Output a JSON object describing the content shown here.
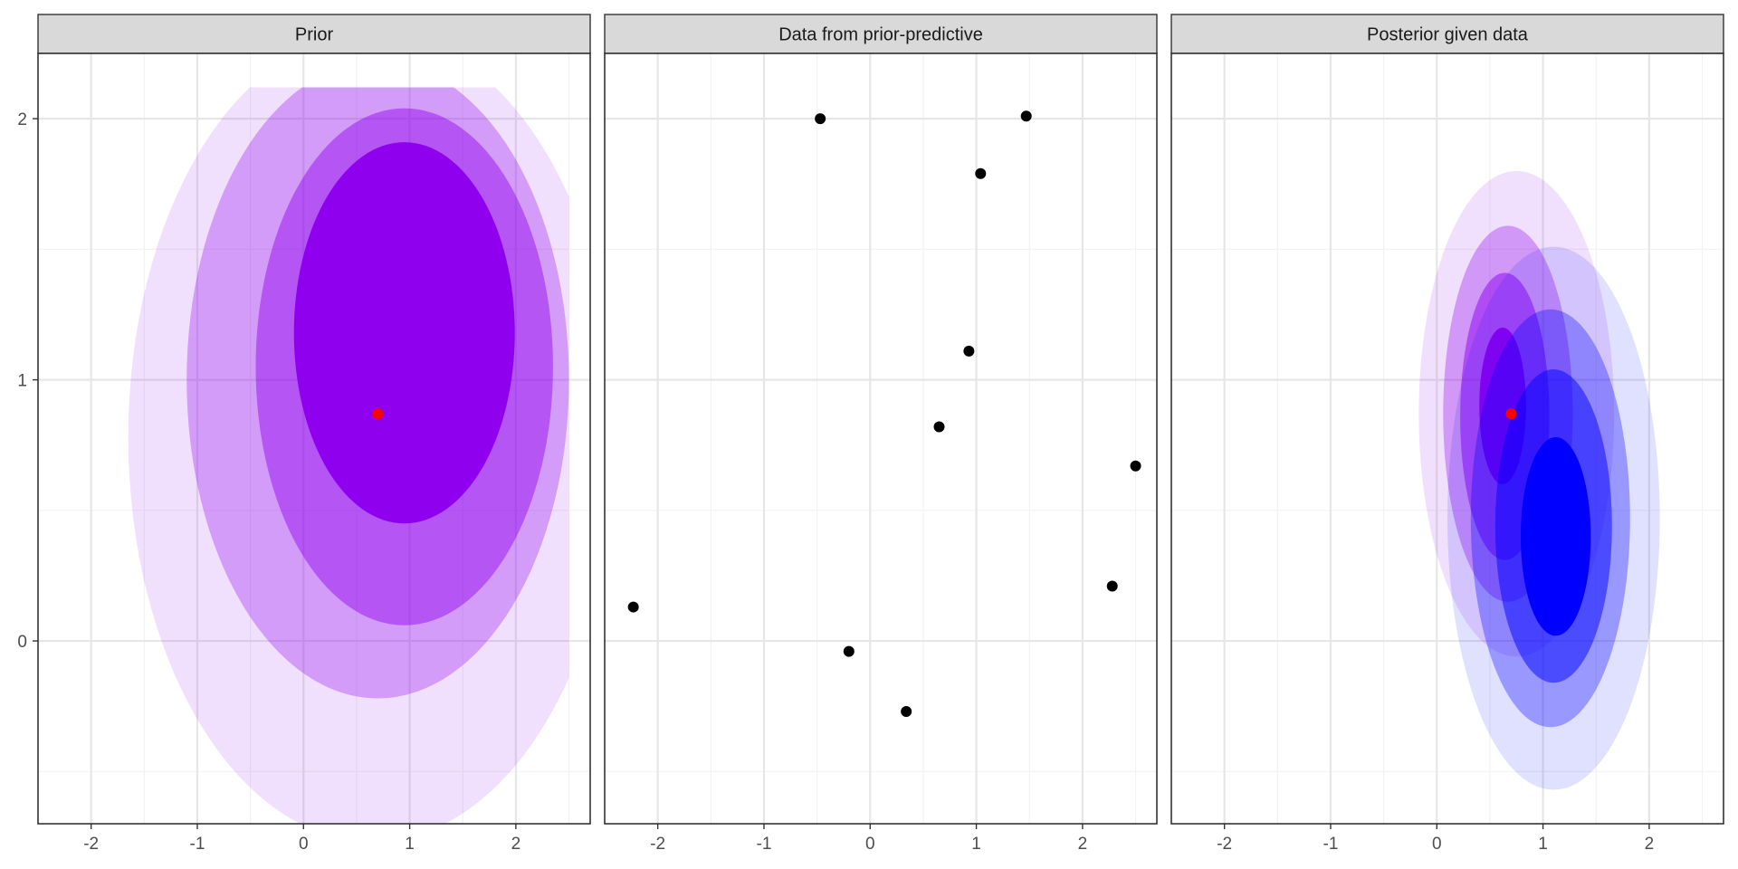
{
  "colors": {
    "panel_bg": "#ffffff",
    "strip_bg": "#d9d9d9",
    "border": "#333333",
    "grid_major": "#e6e6e6",
    "grid_minor": "#f2f2f2",
    "prior_fill": "#8f00ef",
    "posterior_fill": "#0000ff",
    "true_point": "#ff0000",
    "data_point": "#000000"
  },
  "chart_data": {
    "type": "faceted-contour-scatter",
    "panels": [
      {
        "key": "prior",
        "title": "Prior"
      },
      {
        "key": "data",
        "title": "Data from prior-predictive"
      },
      {
        "key": "posterior",
        "title": "Posterior given data"
      }
    ],
    "x_ticks": [
      -2,
      -1,
      0,
      1,
      2
    ],
    "y_ticks": [
      0,
      1,
      2
    ],
    "xlim": [
      -2.5,
      2.7
    ],
    "ylim": [
      -0.7,
      2.25
    ],
    "grid": true,
    "true_point": {
      "x": 0.7,
      "y": 0.87
    },
    "prior_regions": [
      {
        "level": "outer",
        "opacity": 0.12,
        "cx": 0.65,
        "cy": 0.78,
        "rx": 2.3,
        "ry": 1.55
      },
      {
        "level": "second",
        "opacity": 0.3,
        "cx": 0.7,
        "cy": 1.0,
        "rx": 1.8,
        "ry": 1.22
      },
      {
        "level": "third",
        "opacity": 0.45,
        "cx": 0.95,
        "cy": 1.05,
        "rx": 1.4,
        "ry": 0.99
      },
      {
        "level": "core",
        "opacity": 1.0,
        "cx": 0.95,
        "cy": 1.18,
        "rx": 1.04,
        "ry": 0.73
      }
    ],
    "prior_clip": {
      "x_max": 2.5,
      "y_max": 2.12
    },
    "data_points": [
      {
        "x": -2.23,
        "y": 0.13
      },
      {
        "x": -0.47,
        "y": 2.0
      },
      {
        "x": -0.2,
        "y": -0.04
      },
      {
        "x": 0.34,
        "y": -0.27
      },
      {
        "x": 0.65,
        "y": 0.82
      },
      {
        "x": 0.93,
        "y": 1.11
      },
      {
        "x": 1.04,
        "y": 1.79
      },
      {
        "x": 1.47,
        "y": 2.01
      },
      {
        "x": 2.28,
        "y": 0.21
      },
      {
        "x": 2.5,
        "y": 0.67
      }
    ],
    "posterior_prior_regions": [
      {
        "level": "outer",
        "opacity": 0.12,
        "cx": 0.75,
        "cy": 0.87,
        "rx": 0.92,
        "ry": 0.93
      },
      {
        "level": "second",
        "opacity": 0.32,
        "cx": 0.67,
        "cy": 0.87,
        "rx": 0.61,
        "ry": 0.72
      },
      {
        "level": "third",
        "opacity": 0.5,
        "cx": 0.64,
        "cy": 0.86,
        "rx": 0.42,
        "ry": 0.55
      },
      {
        "level": "core",
        "opacity": 0.95,
        "cx": 0.62,
        "cy": 0.9,
        "rx": 0.22,
        "ry": 0.3
      }
    ],
    "posterior_regions": [
      {
        "level": "outer",
        "opacity": 0.12,
        "cx": 1.1,
        "cy": 0.47,
        "rx": 1.0,
        "ry": 1.04
      },
      {
        "level": "second",
        "opacity": 0.32,
        "cx": 1.07,
        "cy": 0.47,
        "rx": 0.75,
        "ry": 0.8
      },
      {
        "level": "third",
        "opacity": 0.5,
        "cx": 1.1,
        "cy": 0.44,
        "rx": 0.55,
        "ry": 0.6
      },
      {
        "level": "core",
        "opacity": 1.0,
        "cx": 1.12,
        "cy": 0.4,
        "rx": 0.33,
        "ry": 0.38
      }
    ]
  }
}
